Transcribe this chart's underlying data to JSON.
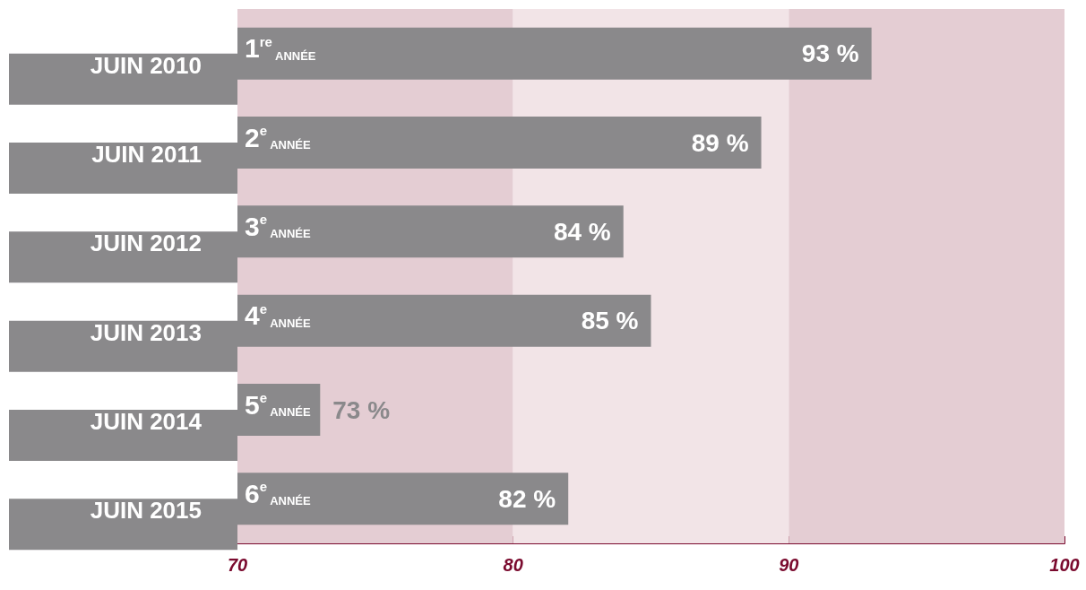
{
  "chart_data": {
    "type": "bar",
    "orientation": "horizontal",
    "categories": [
      "JUIN 2010",
      "JUIN 2011",
      "JUIN 2012",
      "JUIN 2013",
      "JUIN 2014",
      "JUIN 2015"
    ],
    "values": [
      93,
      89,
      84,
      85,
      73,
      82
    ],
    "value_labels": [
      "93 %",
      "89 %",
      "84 %",
      "85 %",
      "73 %",
      "82 %"
    ],
    "color": "#8a898b",
    "xlim": [
      70,
      100
    ],
    "xticks": [
      70,
      {
        "value": 75,
        "label": null
      },
      80,
      {
        "value": 85,
        "label": null
      },
      90,
      {
        "value": 95,
        "label": null
      },
      100
    ],
    "grid": false,
    "annotations": [
      "1$^{re}$ ANNÉE",
      "2$^{e}$ ANNÉE",
      "3$^{e}$ ANNÉE",
      "4$^{e}$ ANNÉE",
      "5$^{e}$ ANNÉE",
      "6$^{e}$ ANNÉE"
    ],
    "bands": [
      {
        "axis": "x",
        "from": 70,
        "to": 80,
        "color": "#e4cdd3"
      },
      {
        "axis": "x",
        "from": 80,
        "to": 90,
        "color": "#f2e4e7"
      },
      {
        "axis": "x",
        "from": 90,
        "to": 100,
        "color": "#e4cdd3"
      }
    ]
  }
}
